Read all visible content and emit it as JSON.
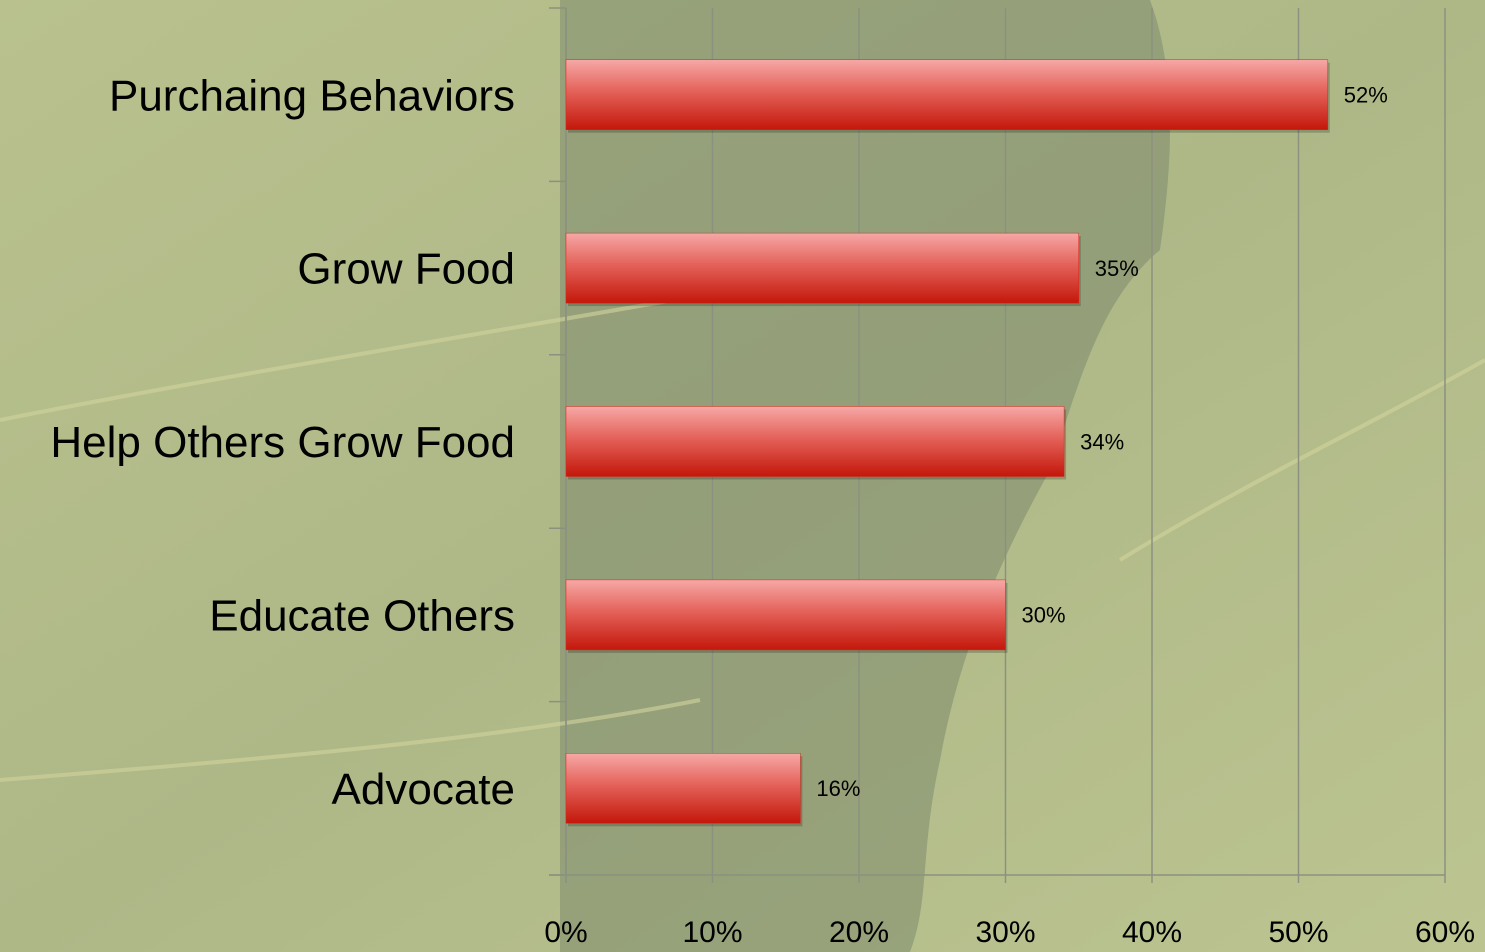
{
  "chart_data": {
    "type": "bar",
    "orientation": "horizontal",
    "categories": [
      "Purchaing Behaviors",
      "Grow Food",
      "Help Others Grow Food",
      "Educate Others",
      "Advocate"
    ],
    "values": [
      52,
      35,
      34,
      30,
      16
    ],
    "value_labels": [
      "52%",
      "35%",
      "34%",
      "30%",
      "16%"
    ],
    "color": "#d42a1c",
    "xlim": [
      0,
      60
    ],
    "xticks": [
      {
        "value": 0,
        "label": "0%"
      },
      {
        "value": 10,
        "label": "10%"
      },
      {
        "value": 20,
        "label": "20%"
      },
      {
        "value": 30,
        "label": "30%"
      },
      {
        "value": 40,
        "label": "40%"
      },
      {
        "value": 50,
        "label": "50%"
      },
      {
        "value": 60,
        "label": "60%"
      }
    ],
    "grid": true
  }
}
